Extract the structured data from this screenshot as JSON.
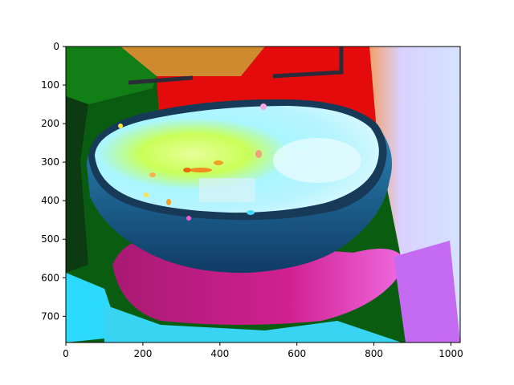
{
  "chart_data": {
    "type": "image",
    "description_note": "",
    "xlim": [
      0,
      1024
    ],
    "ylim": [
      768,
      0
    ],
    "x_ticks": [
      0,
      200,
      400,
      600,
      800,
      1000
    ],
    "y_ticks": [
      0,
      100,
      200,
      300,
      400,
      500,
      600,
      700
    ],
    "x_tick_labels": [
      "0",
      "200",
      "400",
      "600",
      "800",
      "1000"
    ],
    "y_tick_labels": [
      "0",
      "100",
      "200",
      "300",
      "400",
      "500",
      "600",
      "700"
    ],
    "grid": false,
    "title": "",
    "xlabel": "",
    "ylabel": "",
    "colors": {
      "green": "#0b6b12",
      "orange": "#d8862a",
      "red": "#e20c0f",
      "magenta": "#c0157e",
      "cyan": "#22d9f6",
      "light_cyan": "#9ff0ff",
      "lime": "#b6ff3b",
      "bowl_rim": "#1c4a6c",
      "lavender": "#d9c6ff",
      "pink": "#f08ad0"
    }
  }
}
